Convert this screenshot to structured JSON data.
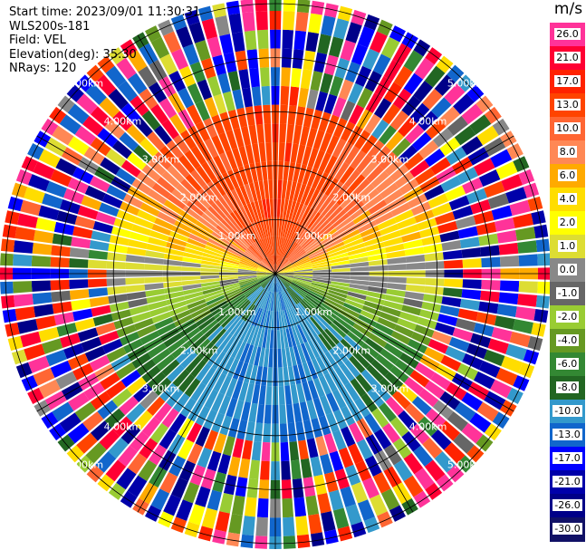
{
  "meta": {
    "start_time": "Start time: 2023/09/01 11:30:31",
    "station": "WLS200s-181",
    "field": "Field: VEL",
    "elevation": "Elevation(deg): 35.30",
    "nrays": "NRays: 120"
  },
  "colorbar": {
    "unit": "m/s",
    "ticks": [
      "26.0",
      "21.0",
      "17.0",
      "13.0",
      "10.0",
      "8.0",
      "6.0",
      "4.0",
      "2.0",
      "1.0",
      "0.0",
      "-1.0",
      "-2.0",
      "-4.0",
      "-6.0",
      "-8.0",
      "-10.0",
      "-13.0",
      "-17.0",
      "-21.0",
      "-26.0",
      "-30.0"
    ],
    "colors": [
      "#ff3399",
      "#ff0033",
      "#ff2200",
      "#ff4400",
      "#ff6633",
      "#ff8855",
      "#ffaa00",
      "#ffdd00",
      "#ffff00",
      "#dddd33",
      "#888888",
      "#666666",
      "#99cc33",
      "#669922",
      "#338833",
      "#226622",
      "#3399cc",
      "#1166cc",
      "#0000ff",
      "#0000aa",
      "#000088",
      "#111166"
    ]
  },
  "chart_data": {
    "type": "ppi",
    "nrays": 120,
    "n_range_gates": 15,
    "range_labels": [
      "1.00km",
      "2.00km",
      "3.00km",
      "4.00km",
      "5.00km"
    ],
    "range_rings_km": [
      1,
      2,
      3,
      4,
      5
    ],
    "max_range_km": 5.0,
    "velocity_pattern": "northern half positive (orange/red, up to ~13 m/s), southern half negative (blue/green, down to ~-17 m/s), noisy beyond ~3 km"
  }
}
